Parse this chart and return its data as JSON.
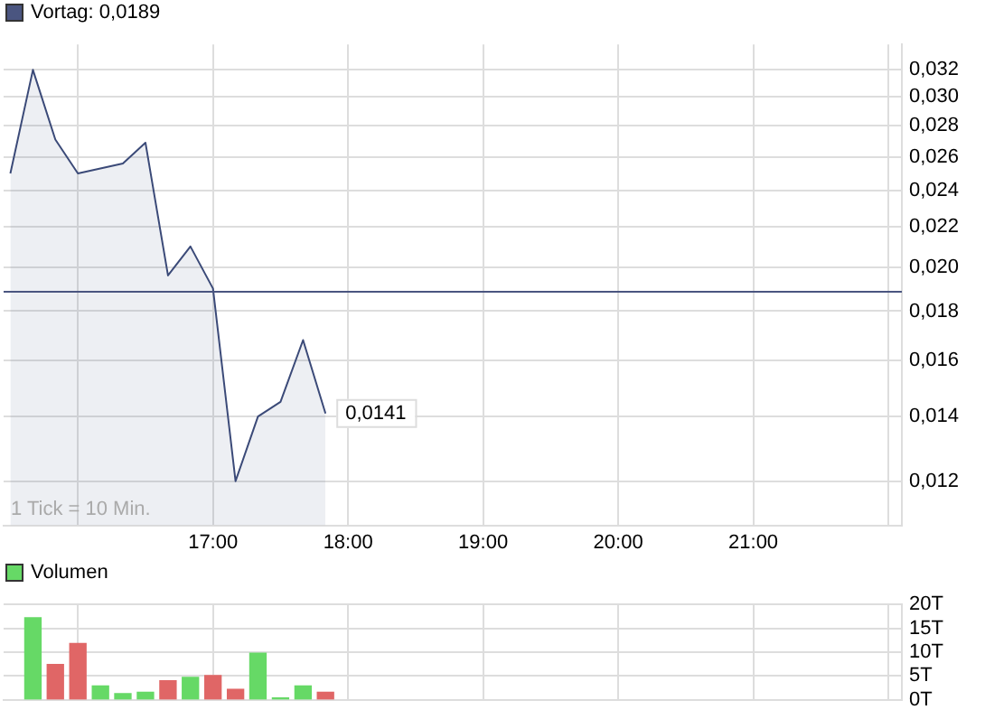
{
  "chart_data": [
    {
      "type": "area",
      "x": [
        15.5,
        15.667,
        15.833,
        16,
        16.333,
        16.5,
        16.667,
        16.833,
        17,
        17.167,
        17.333,
        17.5,
        17.667,
        17.833
      ],
      "series": [
        {
          "color": "#3b4a78",
          "values": [
            0.025,
            0.032,
            0.0271,
            0.025,
            0.0256,
            0.0269,
            0.0196,
            0.021,
            0.019,
            0.012,
            0.014,
            0.0145,
            0.0168,
            0.0141
          ]
        }
      ],
      "xlim": [
        15.45,
        22.1
      ],
      "xticks": [
        {
          "value": 16,
          "label": null
        },
        {
          "value": 17,
          "label": "17:00"
        },
        {
          "value": 18,
          "label": "18:00"
        },
        {
          "value": 19,
          "label": "19:00"
        },
        {
          "value": 20,
          "label": "20:00"
        },
        {
          "value": 21,
          "label": "21:00"
        },
        {
          "value": 22,
          "label": null
        }
      ],
      "ylim": [
        0.0108,
        0.034
      ],
      "yticks": [
        {
          "value": 0.012,
          "label": "0,012"
        },
        {
          "value": 0.014,
          "label": "0,014"
        },
        {
          "value": 0.016,
          "label": "0,016"
        },
        {
          "value": 0.018,
          "label": "0,018"
        },
        {
          "value": 0.02,
          "label": "0,020"
        },
        {
          "value": 0.022,
          "label": "0,022"
        },
        {
          "value": 0.024,
          "label": "0,024"
        },
        {
          "value": 0.026,
          "label": "0,026"
        },
        {
          "value": 0.028,
          "label": "0,028"
        },
        {
          "value": 0.03,
          "label": "0,030"
        },
        {
          "value": 0.032,
          "label": "0,032"
        }
      ],
      "log": "y",
      "grid": true,
      "marker": "none",
      "line_style": "solid",
      "ref_lines": [
        {
          "axis": "y",
          "value": 0.0189,
          "label": "Vortag: 0,0189",
          "color": "#4a5580"
        }
      ],
      "annotations": [
        {
          "text": "0,0141",
          "x": 17.833,
          "y": 0.0141
        },
        "1 Tick = 10 Min."
      ]
    },
    {
      "type": "bar",
      "x": [
        15.667,
        15.833,
        16,
        16.167,
        16.333,
        16.5,
        16.667,
        16.833,
        17,
        17.167,
        17.333,
        17.5,
        17.667,
        17.833
      ],
      "series": [
        {
          "name": "Volumen",
          "color": "#66d966",
          "values": [
            17.2,
            7.4,
            11.8,
            2.9,
            1.3,
            1.6,
            4.0,
            4.7,
            5.1,
            2.2,
            9.8,
            0.4,
            2.9,
            1.6
          ],
          "colors": [
            "#66d966",
            "#e06666",
            "#e06666",
            "#66d966",
            "#66d966",
            "#66d966",
            "#e06666",
            "#66d966",
            "#e06666",
            "#e06666",
            "#66d966",
            "#66d966",
            "#66d966",
            "#e06666"
          ]
        }
      ],
      "xlim": [
        15.45,
        22.1
      ],
      "xticks": [
        16,
        17,
        18,
        19,
        20,
        21,
        22
      ],
      "ylim": [
        0,
        20
      ],
      "yticks": [
        {
          "value": 0,
          "label": "0T"
        },
        {
          "value": 5,
          "label": "5T"
        },
        {
          "value": 10,
          "label": "10T"
        },
        {
          "value": 15,
          "label": "15T"
        },
        {
          "value": 20,
          "label": "20T"
        }
      ],
      "grid": true,
      "tick_labels": "y",
      "legend": "top left"
    }
  ]
}
